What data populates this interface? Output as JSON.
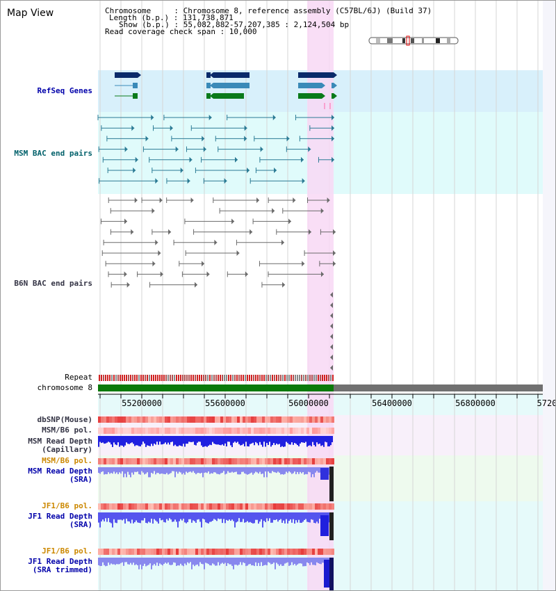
{
  "view": {
    "title": "Map View"
  },
  "info": {
    "chromosome": "Chromosome     : Chromosome 8, reference assembly (C57BL/6J) (Build 37)",
    "length": "Length (b.p.) : 131,738,871",
    "show": "Show (b.p.) : 55,082,882-57,207,385 : 2,124,504 bp",
    "coverage": "Read coverage check span : 10,000"
  },
  "tracks": {
    "refseq": "RefSeq Genes",
    "msm_bac": "MSM BAC end pairs",
    "b6n_bac": "B6N BAC end pairs",
    "repeat": "Repeat",
    "chromosome": "chromosome 8",
    "dbsnp": "dbSNP(Mouse)",
    "msm_b6_pol": "MSM/B6 pol.",
    "msm_depth_cap_1": "MSM Read Depth",
    "msm_depth_cap_2": "(Capillary)",
    "msm_b6_pol_sra": "MSM/B6 pol.",
    "msm_depth_sra_1": "MSM Read Depth",
    "msm_depth_sra_2": "(SRA)",
    "jf1_pol_1": "JF1/B6 pol.",
    "jf1_depth_sra_1": "JF1 Read Depth",
    "jf1_depth_sra_2": "(SRA)",
    "jf1_pol_2": "JF1/B6 pol.",
    "jf1_depth_trim_1": "JF1 Read Depth",
    "jf1_depth_trim_2": "(SRA trimmed)"
  },
  "axis": {
    "ticks": [
      "55200000",
      "55600000",
      "56000000",
      "56400000",
      "56800000",
      "5720"
    ]
  },
  "colors": {
    "highlight": "#f8d8f4",
    "refseq_band": "#d8f0fb",
    "bac_band": "#e0fbfb",
    "gene_dark": "#0a2a6a",
    "gene_mid": "#3a8ab8",
    "gene_green": "#0a7a1a",
    "chromosome_green": "#0a7a0a",
    "chromosome_gray": "#707070",
    "depth_blue": "#2020e0",
    "depth_light": "#8888ee"
  }
}
